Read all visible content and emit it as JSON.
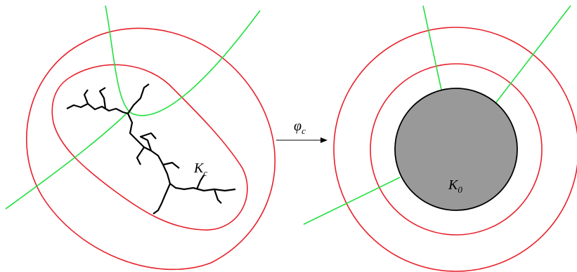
{
  "labels": {
    "julia": {
      "main": "K",
      "sub": "c"
    },
    "map": {
      "main": "φ",
      "sub": "c"
    },
    "disk": {
      "main": "K",
      "sub": "0"
    }
  }
}
